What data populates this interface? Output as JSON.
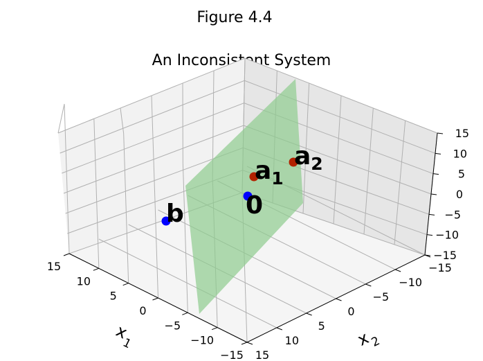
{
  "figure": {
    "suptitle": "Figure 4.4",
    "title": "An Inconsistent System"
  },
  "chart_data": {
    "type": "scatter3d",
    "xlabel": "x",
    "xlabel_sub": "1",
    "ylabel": "x",
    "ylabel_sub": "2",
    "zlabel": "",
    "xlim": [
      -15,
      15
    ],
    "ylim": [
      -15,
      15
    ],
    "zlim": [
      -15,
      15
    ],
    "xticks": [
      15,
      10,
      5,
      0,
      -5,
      -10,
      -15
    ],
    "yticks": [
      -15,
      -10,
      -5,
      0,
      5,
      10,
      15
    ],
    "zticks": [
      15,
      10,
      5,
      0,
      -5,
      -10,
      -15
    ],
    "grid": true,
    "colors": {
      "blue": "#0000ff",
      "red": "#b22200",
      "plane": "#8fcc8f"
    },
    "points": [
      {
        "label": "b",
        "sub": "",
        "color": "blue"
      },
      {
        "label": "0",
        "sub": "",
        "color": "blue"
      },
      {
        "label": "a",
        "sub": "1",
        "color": "red"
      },
      {
        "label": "a",
        "sub": "2",
        "color": "red"
      }
    ],
    "plane": {
      "color": "plane",
      "opacity": 0.7
    }
  }
}
